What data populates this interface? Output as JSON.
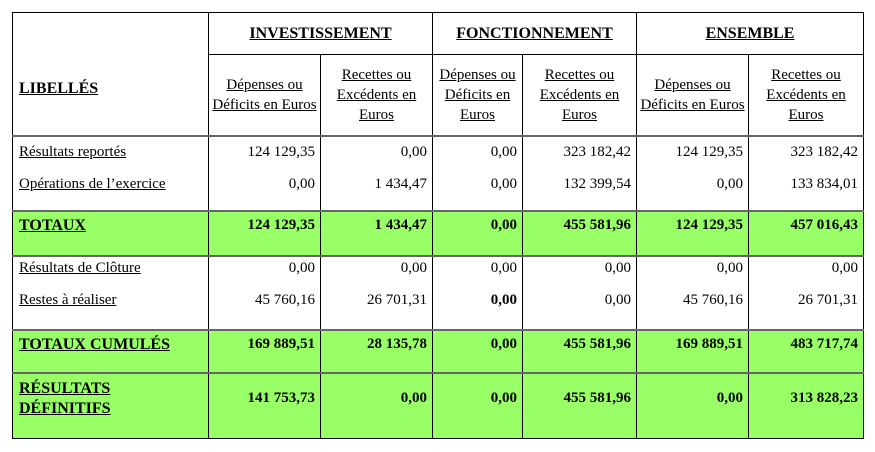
{
  "headers": {
    "libelles": "LIBELLÉS",
    "groups": [
      "INVESTISSEMENT",
      "FONCTIONNEMENT",
      "ENSEMBLE"
    ],
    "sub": [
      "Dépenses ou Déficits en Euros",
      "Recettes ou Excédents en Euros",
      "Dépenses ou Déficits en Euros",
      "Recettes ou Excédents en Euros",
      "Dépenses ou Déficits en Euros",
      "Recettes ou Excédents en Euros"
    ]
  },
  "rows": {
    "reportes": {
      "label": "Résultats reportés",
      "values": [
        "124 129,35",
        "0,00",
        "0,00",
        "323 182,42",
        "124 129,35",
        "323 182,42"
      ]
    },
    "operations": {
      "label": "Opérations de l’exercice",
      "values": [
        "0,00",
        "1 434,47",
        "0,00",
        "132 399,54",
        "0,00",
        "133 834,01"
      ]
    },
    "totaux": {
      "label": "TOTAUX",
      "values": [
        "124 129,35",
        "1 434,47",
        "0,00",
        "455 581,96",
        "124 129,35",
        "457 016,43"
      ]
    },
    "cloture": {
      "label": "Résultats de Clôture",
      "values": [
        "0,00",
        "0,00",
        "0,00",
        "0,00",
        "0,00",
        "0,00"
      ]
    },
    "restes": {
      "label": "Restes à réaliser",
      "values": [
        "45 760,16",
        "26 701,31",
        "0,00",
        "0,00",
        "45 760,16",
        "26 701,31"
      ]
    },
    "cumules": {
      "label": "TOTAUX CUMULÉS",
      "values": [
        "169 889,51",
        "28 135,78",
        "0,00",
        "455 581,96",
        "169 889,51",
        "483 717,74"
      ]
    },
    "definitifs": {
      "label": "RÉSULTATS DÉFINITIFS",
      "values": [
        "141 753,73",
        "0,00",
        "0,00",
        "455 581,96",
        "0,00",
        "313 828,23"
      ]
    }
  },
  "colors": {
    "highlight": "#99ff66"
  }
}
